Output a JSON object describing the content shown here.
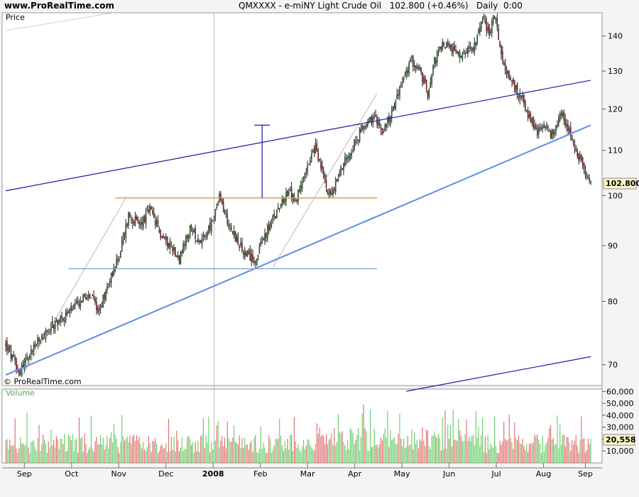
{
  "header": {
    "site": "www.ProRealTime.com",
    "symbol": "QMXXXX - e-miNY Light Crude Oil",
    "last": "102.800 (+0.46%)",
    "timeframe": "Daily  0:00"
  },
  "price_panel": {
    "label": "Price",
    "watermark": "© ProRealTime.com",
    "last_price_tag": "102.800"
  },
  "volume_panel": {
    "label": "Volume",
    "last_volume_tag": "20,558"
  },
  "colors": {
    "up": "#2f8f2f",
    "down": "#cc2222",
    "volume_up": "#66cc66",
    "volume_down": "#e26a6a",
    "channel": "#1a1aa8",
    "trend": "#5b8ee6",
    "resistance": "#e0a050",
    "support": "#7aa0c8"
  },
  "chart_data": [
    {
      "type": "candlestick",
      "title": "",
      "y_scale": "log",
      "ylim": [
        67,
        147
      ],
      "y_ticks": [
        {
          "value": 70,
          "label": "70"
        },
        {
          "value": 80,
          "label": "80"
        },
        {
          "value": 90,
          "label": "90"
        },
        {
          "value": 100,
          "label": "100"
        },
        {
          "value": 110,
          "label": "110"
        },
        {
          "value": 120,
          "label": "120"
        },
        {
          "value": 130,
          "label": "130"
        },
        {
          "value": 140,
          "label": "140"
        }
      ],
      "x_labels": [
        {
          "label": "Sep",
          "bold": false
        },
        {
          "label": "Oct",
          "bold": false
        },
        {
          "label": "Nov",
          "bold": false
        },
        {
          "label": "Dec",
          "bold": false
        },
        {
          "label": "2008",
          "bold": true
        },
        {
          "label": "Feb",
          "bold": false
        },
        {
          "label": "Mar",
          "bold": false
        },
        {
          "label": "Apr",
          "bold": false
        },
        {
          "label": "May",
          "bold": false
        },
        {
          "label": "Jun",
          "bold": false
        },
        {
          "label": "Jul",
          "bold": false
        },
        {
          "label": "Aug",
          "bold": false
        },
        {
          "label": "Sep",
          "bold": false
        }
      ],
      "close_path": [
        [
          0,
          73.0
        ],
        [
          10,
          69.0
        ],
        [
          22,
          73.0
        ],
        [
          38,
          76.5
        ],
        [
          52,
          79.0
        ],
        [
          62,
          81.5
        ],
        [
          70,
          78.5
        ],
        [
          78,
          84.0
        ],
        [
          85,
          88.0
        ],
        [
          92,
          96.0
        ],
        [
          100,
          94.0
        ],
        [
          108,
          97.0
        ],
        [
          116,
          92.0
        ],
        [
          124,
          90.0
        ],
        [
          130,
          87.5
        ],
        [
          138,
          93.0
        ],
        [
          146,
          91.0
        ],
        [
          154,
          94.0
        ],
        [
          160,
          99.5
        ],
        [
          166,
          95.0
        ],
        [
          174,
          90.5
        ],
        [
          180,
          88.0
        ],
        [
          188,
          87.5
        ],
        [
          193,
          91.5
        ],
        [
          200,
          95.0
        ],
        [
          206,
          99.0
        ],
        [
          212,
          100.5
        ],
        [
          218,
          99.0
        ],
        [
          222,
          104.0
        ],
        [
          228,
          107.5
        ],
        [
          232,
          111.0
        ],
        [
          236,
          106.0
        ],
        [
          240,
          102.0
        ],
        [
          244,
          100.0
        ],
        [
          248,
          103.5
        ],
        [
          254,
          108.0
        ],
        [
          262,
          112.0
        ],
        [
          270,
          117.0
        ],
        [
          276,
          117.5
        ],
        [
          282,
          114.5
        ],
        [
          288,
          118.5
        ],
        [
          296,
          126.0
        ],
        [
          304,
          133.0
        ],
        [
          310,
          130.0
        ],
        [
          316,
          124.0
        ],
        [
          320,
          132.0
        ],
        [
          328,
          138.0
        ],
        [
          336,
          135.0
        ],
        [
          344,
          134.0
        ],
        [
          352,
          139.0
        ],
        [
          358,
          144.5
        ],
        [
          362,
          141.0
        ],
        [
          366,
          146.0
        ],
        [
          370,
          138.0
        ],
        [
          374,
          130.0
        ],
        [
          380,
          126.0
        ],
        [
          386,
          123.0
        ],
        [
          392,
          118.0
        ],
        [
          398,
          114.0
        ],
        [
          404,
          115.0
        ],
        [
          410,
          113.0
        ],
        [
          416,
          119.0
        ],
        [
          422,
          115.0
        ],
        [
          428,
          109.0
        ],
        [
          433,
          106.0
        ],
        [
          438,
          102.8
        ]
      ],
      "volume_ylim": [
        0,
        62000
      ],
      "volume_ticks": [
        {
          "value": 10000,
          "label": "10,000"
        },
        {
          "value": 20000,
          "label": "20,000"
        },
        {
          "value": 30000,
          "label": "30,000"
        },
        {
          "value": 40000,
          "label": "40,000"
        },
        {
          "value": 50000,
          "label": "50,000"
        },
        {
          "value": 60000,
          "label": "60,000"
        }
      ],
      "annotations": {
        "upper_channel": [
          [
            0,
            101.0
          ],
          [
            438,
            127.5
          ]
        ],
        "lower_channel": [
          [
            300,
            66.2
          ],
          [
            438,
            71.2
          ]
        ],
        "trend_line": [
          [
            0,
            68.5
          ],
          [
            438,
            116.0
          ]
        ],
        "resistance": [
          [
            82,
            99.5
          ],
          [
            278,
            99.5
          ]
        ],
        "support": [
          [
            47,
            85.7
          ],
          [
            278,
            85.7
          ]
        ],
        "steep_left": [
          [
            12,
            68.2
          ],
          [
            90,
            99.5
          ]
        ],
        "steep_right": [
          [
            200,
            86.0
          ],
          [
            278,
            124.0
          ]
        ],
        "measure_bar": [
          [
            192,
            99.5
          ],
          [
            192,
            116.0
          ]
        ],
        "year_line_x": 156
      }
    }
  ]
}
